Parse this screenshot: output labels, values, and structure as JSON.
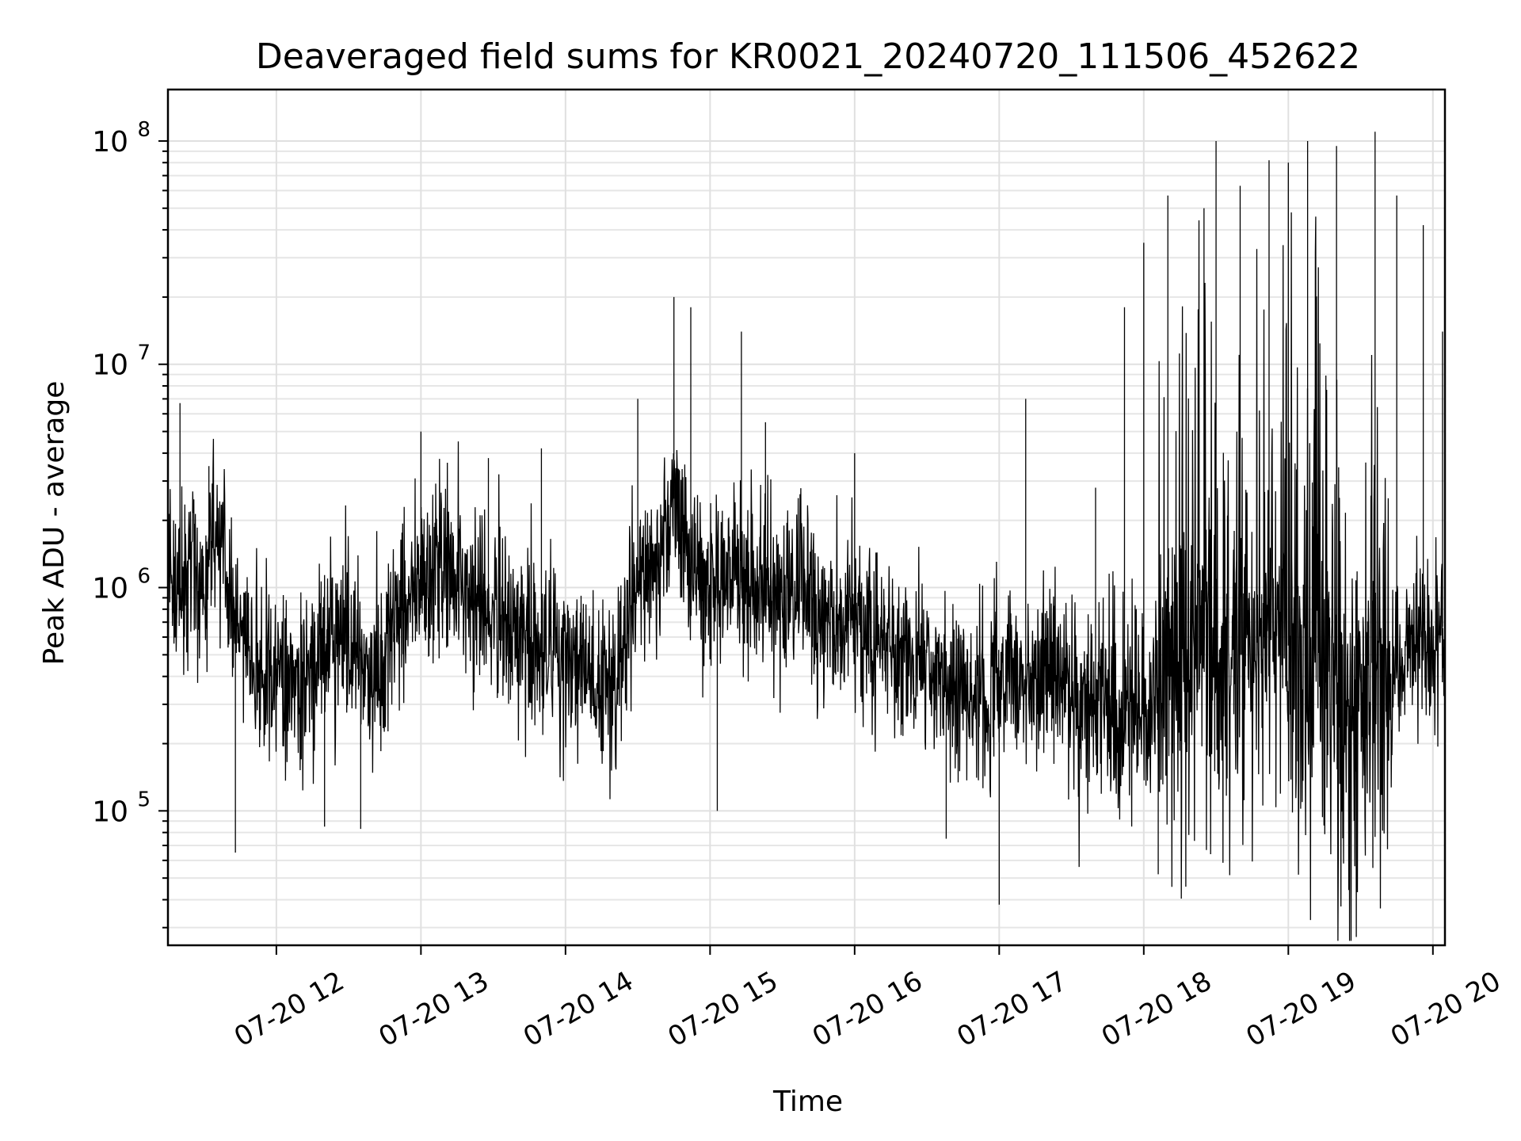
{
  "chart_data": {
    "type": "line",
    "title": "Deaveraged field sums for KR0021_20240720_111506_452622",
    "xlabel": "Time",
    "ylabel": "Peak ADU - average",
    "yscale": "log",
    "xlim": [
      "07-20 11:15",
      "07-20 20:05"
    ],
    "ylim": [
      25000,
      170000000
    ],
    "grid": "on",
    "legend": "none",
    "line_color": "#000000",
    "x_ticks": [
      {
        "label": "07-20 12",
        "hour": 12
      },
      {
        "label": "07-20 13",
        "hour": 13
      },
      {
        "label": "07-20 14",
        "hour": 14
      },
      {
        "label": "07-20 15",
        "hour": 15
      },
      {
        "label": "07-20 16",
        "hour": 16
      },
      {
        "label": "07-20 17",
        "hour": 17
      },
      {
        "label": "07-20 18",
        "hour": 18
      },
      {
        "label": "07-20 19",
        "hour": 19
      },
      {
        "label": "07-20 20",
        "hour": 20
      }
    ],
    "y_ticks": [
      {
        "base": "10",
        "exp": "5",
        "value": 100000
      },
      {
        "base": "10",
        "exp": "6",
        "value": 1000000
      },
      {
        "base": "10",
        "exp": "7",
        "value": 10000000
      },
      {
        "base": "10",
        "exp": "8",
        "value": 100000000
      }
    ],
    "series": [
      {
        "points": [
          [
            "07-20 11:15",
            1200000
          ],
          [
            "07-20 11:20",
            800000
          ],
          [
            "07-20 11:25",
            1500000
          ],
          [
            "07-20 11:30",
            900000
          ],
          [
            "07-20 11:35",
            2000000
          ],
          [
            "07-20 11:40",
            1000000
          ],
          [
            "07-20 11:45",
            700000
          ],
          [
            "07-20 11:50",
            500000
          ],
          [
            "07-20 11:55",
            400000
          ],
          [
            "07-20 12:00",
            450000
          ],
          [
            "07-20 12:10",
            350000
          ],
          [
            "07-20 12:20",
            500000
          ],
          [
            "07-20 12:30",
            600000
          ],
          [
            "07-20 12:40",
            400000
          ],
          [
            "07-20 12:50",
            700000
          ],
          [
            "07-20 13:00",
            1100000
          ],
          [
            "07-20 13:10",
            1200000
          ],
          [
            "07-20 13:20",
            900000
          ],
          [
            "07-20 13:30",
            800000
          ],
          [
            "07-20 13:40",
            600000
          ],
          [
            "07-20 13:50",
            500000
          ],
          [
            "07-20 14:00",
            450000
          ],
          [
            "07-20 14:10",
            400000
          ],
          [
            "07-20 14:20",
            350000
          ],
          [
            "07-20 14:30",
            1000000
          ],
          [
            "07-20 14:40",
            1400000
          ],
          [
            "07-20 14:45",
            2500000
          ],
          [
            "07-20 14:50",
            1300000
          ],
          [
            "07-20 15:00",
            1100000
          ],
          [
            "07-20 15:10",
            1000000
          ],
          [
            "07-20 15:20",
            1200000
          ],
          [
            "07-20 15:30",
            900000
          ],
          [
            "07-20 15:40",
            1000000
          ],
          [
            "07-20 15:50",
            800000
          ],
          [
            "07-20 16:00",
            700000
          ],
          [
            "07-20 16:10",
            600000
          ],
          [
            "07-20 16:20",
            500000
          ],
          [
            "07-20 16:30",
            450000
          ],
          [
            "07-20 16:40",
            400000
          ],
          [
            "07-20 16:50",
            350000
          ],
          [
            "07-20 17:00",
            400000
          ],
          [
            "07-20 17:10",
            350000
          ],
          [
            "07-20 17:20",
            500000
          ],
          [
            "07-20 17:30",
            300000
          ],
          [
            "07-20 17:40",
            250000
          ],
          [
            "07-20 17:50",
            280000
          ],
          [
            "07-20 18:00",
            300000
          ],
          [
            "07-20 18:10",
            400000
          ],
          [
            "07-20 18:20",
            500000
          ],
          [
            "07-20 18:30",
            450000
          ],
          [
            "07-20 18:40",
            500000
          ],
          [
            "07-20 18:50",
            600000
          ],
          [
            "07-20 19:00",
            550000
          ],
          [
            "07-20 19:10",
            400000
          ],
          [
            "07-20 19:20",
            300000
          ],
          [
            "07-20 19:30",
            250000
          ],
          [
            "07-20 19:40",
            350000
          ],
          [
            "07-20 19:50",
            600000
          ],
          [
            "07-20 20:00",
            550000
          ],
          [
            "07-20 20:05",
            700000
          ]
        ]
      }
    ],
    "spikes": [
      [
        "07-20 11:20",
        6700000
      ],
      [
        "07-20 11:32",
        3500000
      ],
      [
        "07-20 11:43",
        65000
      ],
      [
        "07-20 12:20",
        85000
      ],
      [
        "07-20 12:35",
        83000
      ],
      [
        "07-20 13:00",
        5000000
      ],
      [
        "07-20 13:28",
        3800000
      ],
      [
        "07-20 13:50",
        4200000
      ],
      [
        "07-20 14:30",
        7000000
      ],
      [
        "07-20 14:45",
        20000000
      ],
      [
        "07-20 14:52",
        18000000
      ],
      [
        "07-20 15:03",
        100000
      ],
      [
        "07-20 15:13",
        14000000
      ],
      [
        "07-20 15:23",
        5500000
      ],
      [
        "07-20 16:00",
        4000000
      ],
      [
        "07-20 16:38",
        75000
      ],
      [
        "07-20 17:00",
        38000
      ],
      [
        "07-20 17:11",
        7000000
      ],
      [
        "07-20 17:40",
        2800000
      ],
      [
        "07-20 17:52",
        18000000
      ],
      [
        "07-20 18:00",
        35000000
      ],
      [
        "07-20 18:06",
        52000
      ],
      [
        "07-20 18:10",
        57000000
      ],
      [
        "07-20 18:25",
        50000000
      ],
      [
        "07-20 18:30",
        100000000
      ],
      [
        "07-20 18:40",
        63000000
      ],
      [
        "07-20 18:52",
        82000000
      ],
      [
        "07-20 19:00",
        80000000
      ],
      [
        "07-20 19:08",
        100000000
      ],
      [
        "07-20 19:20",
        95000000
      ],
      [
        "07-20 19:36",
        110000000
      ],
      [
        "07-20 19:45",
        57000000
      ],
      [
        "07-20 19:56",
        42000000
      ],
      [
        "07-20 20:04",
        14000000
      ]
    ]
  }
}
